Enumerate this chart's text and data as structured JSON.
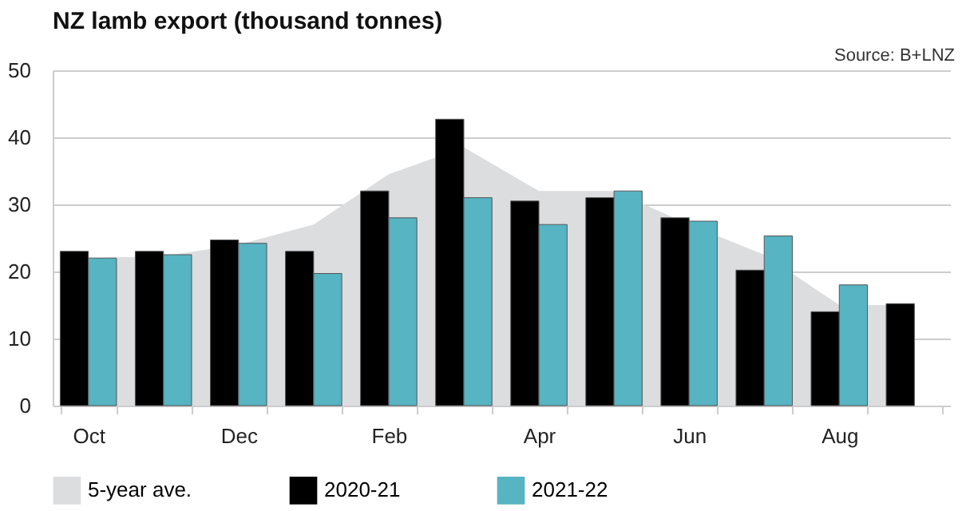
{
  "chart_data": {
    "type": "bar",
    "title": "NZ lamb export (thousand tonnes)",
    "annotations": [
      "Source: B+LNZ"
    ],
    "categories": [
      "Oct",
      null,
      "Dec",
      null,
      "Feb",
      null,
      "Apr",
      null,
      "Jun",
      null,
      "Aug",
      null
    ],
    "series": [
      {
        "name": "5-year ave.",
        "type": "area",
        "color": "#dcdddf",
        "values": [
          22,
          22.3,
          24,
          27,
          34.5,
          38.5,
          32,
          32,
          27,
          22.5,
          15,
          15
        ]
      },
      {
        "name": "2020-21",
        "color": "#000000",
        "values": [
          23,
          23,
          24.7,
          23,
          32,
          42.7,
          30.5,
          31,
          28,
          20.2,
          14,
          15.2
        ]
      },
      {
        "name": "2021-22",
        "color": "#56b4c3",
        "values": [
          22,
          22.5,
          24.2,
          19.7,
          28,
          31,
          27,
          32,
          27.5,
          25.3,
          18,
          null
        ]
      }
    ],
    "ylim": [
      0,
      50
    ],
    "yticks": [
      0,
      10,
      20,
      30,
      40,
      50
    ],
    "grid": "y",
    "legend": "bottom"
  }
}
